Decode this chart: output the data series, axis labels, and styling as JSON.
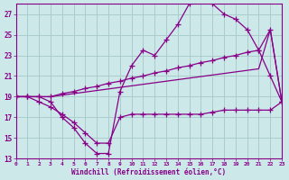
{
  "background_color": "#cce8e8",
  "grid_color": "#aacccc",
  "line_color": "#880088",
  "xlim": [
    0,
    23
  ],
  "ylim": [
    13,
    28
  ],
  "yticks": [
    13,
    15,
    17,
    19,
    21,
    23,
    25,
    27
  ],
  "xticks": [
    0,
    1,
    2,
    3,
    4,
    5,
    6,
    7,
    8,
    9,
    10,
    11,
    12,
    13,
    14,
    15,
    16,
    17,
    18,
    19,
    20,
    21,
    22,
    23
  ],
  "xlabel": "Windchill (Refroidissement éolien,°C)",
  "curve1_x": [
    0,
    1,
    2,
    3,
    4,
    5,
    6,
    7,
    8,
    9,
    10,
    11,
    12,
    13,
    14,
    15,
    16,
    17,
    18,
    19,
    20,
    21,
    22,
    23
  ],
  "curve1_y": [
    19,
    19,
    19,
    18.5,
    17,
    16,
    14.5,
    13.5,
    13.5,
    19.5,
    22,
    23.5,
    23,
    24.5,
    26,
    28,
    28.5,
    28,
    27,
    26.5,
    25.5,
    23.5,
    21,
    18.5
  ],
  "curve2_x": [
    0,
    1,
    2,
    3,
    4,
    5,
    6,
    7,
    8,
    9,
    10,
    11,
    12,
    13,
    14,
    15,
    16,
    17,
    18,
    19,
    20,
    21,
    22,
    23
  ],
  "curve2_y": [
    19,
    19,
    19,
    19,
    19.3,
    19.5,
    19.8,
    20,
    20.3,
    20.5,
    20.8,
    21,
    21.3,
    21.5,
    21.8,
    22,
    22.3,
    22.5,
    22.8,
    23,
    23.3,
    23.5,
    25.5,
    18.5
  ],
  "curve3_x": [
    0,
    1,
    2,
    3,
    4,
    5,
    6,
    7,
    8,
    9,
    10,
    11,
    12,
    13,
    14,
    15,
    16,
    17,
    18,
    19,
    20,
    21,
    22,
    23
  ],
  "curve3_y": [
    19,
    19,
    19,
    19,
    19.15,
    19.3,
    19.45,
    19.6,
    19.75,
    19.9,
    20.05,
    20.2,
    20.35,
    20.5,
    20.65,
    20.8,
    20.95,
    21.1,
    21.25,
    21.4,
    21.55,
    21.7,
    25.5,
    18.5
  ],
  "curve4_x": [
    0,
    1,
    2,
    3,
    4,
    5,
    6,
    7,
    8,
    9,
    10,
    11,
    12,
    13,
    14,
    15,
    16,
    17,
    18,
    19,
    20,
    21,
    22,
    23
  ],
  "curve4_y": [
    19,
    19,
    18.5,
    18,
    17.3,
    16.5,
    15.5,
    14.5,
    14.5,
    17,
    17.3,
    17.3,
    17.3,
    17.3,
    17.3,
    17.3,
    17.3,
    17.5,
    17.7,
    17.7,
    17.7,
    17.7,
    17.7,
    18.5
  ]
}
